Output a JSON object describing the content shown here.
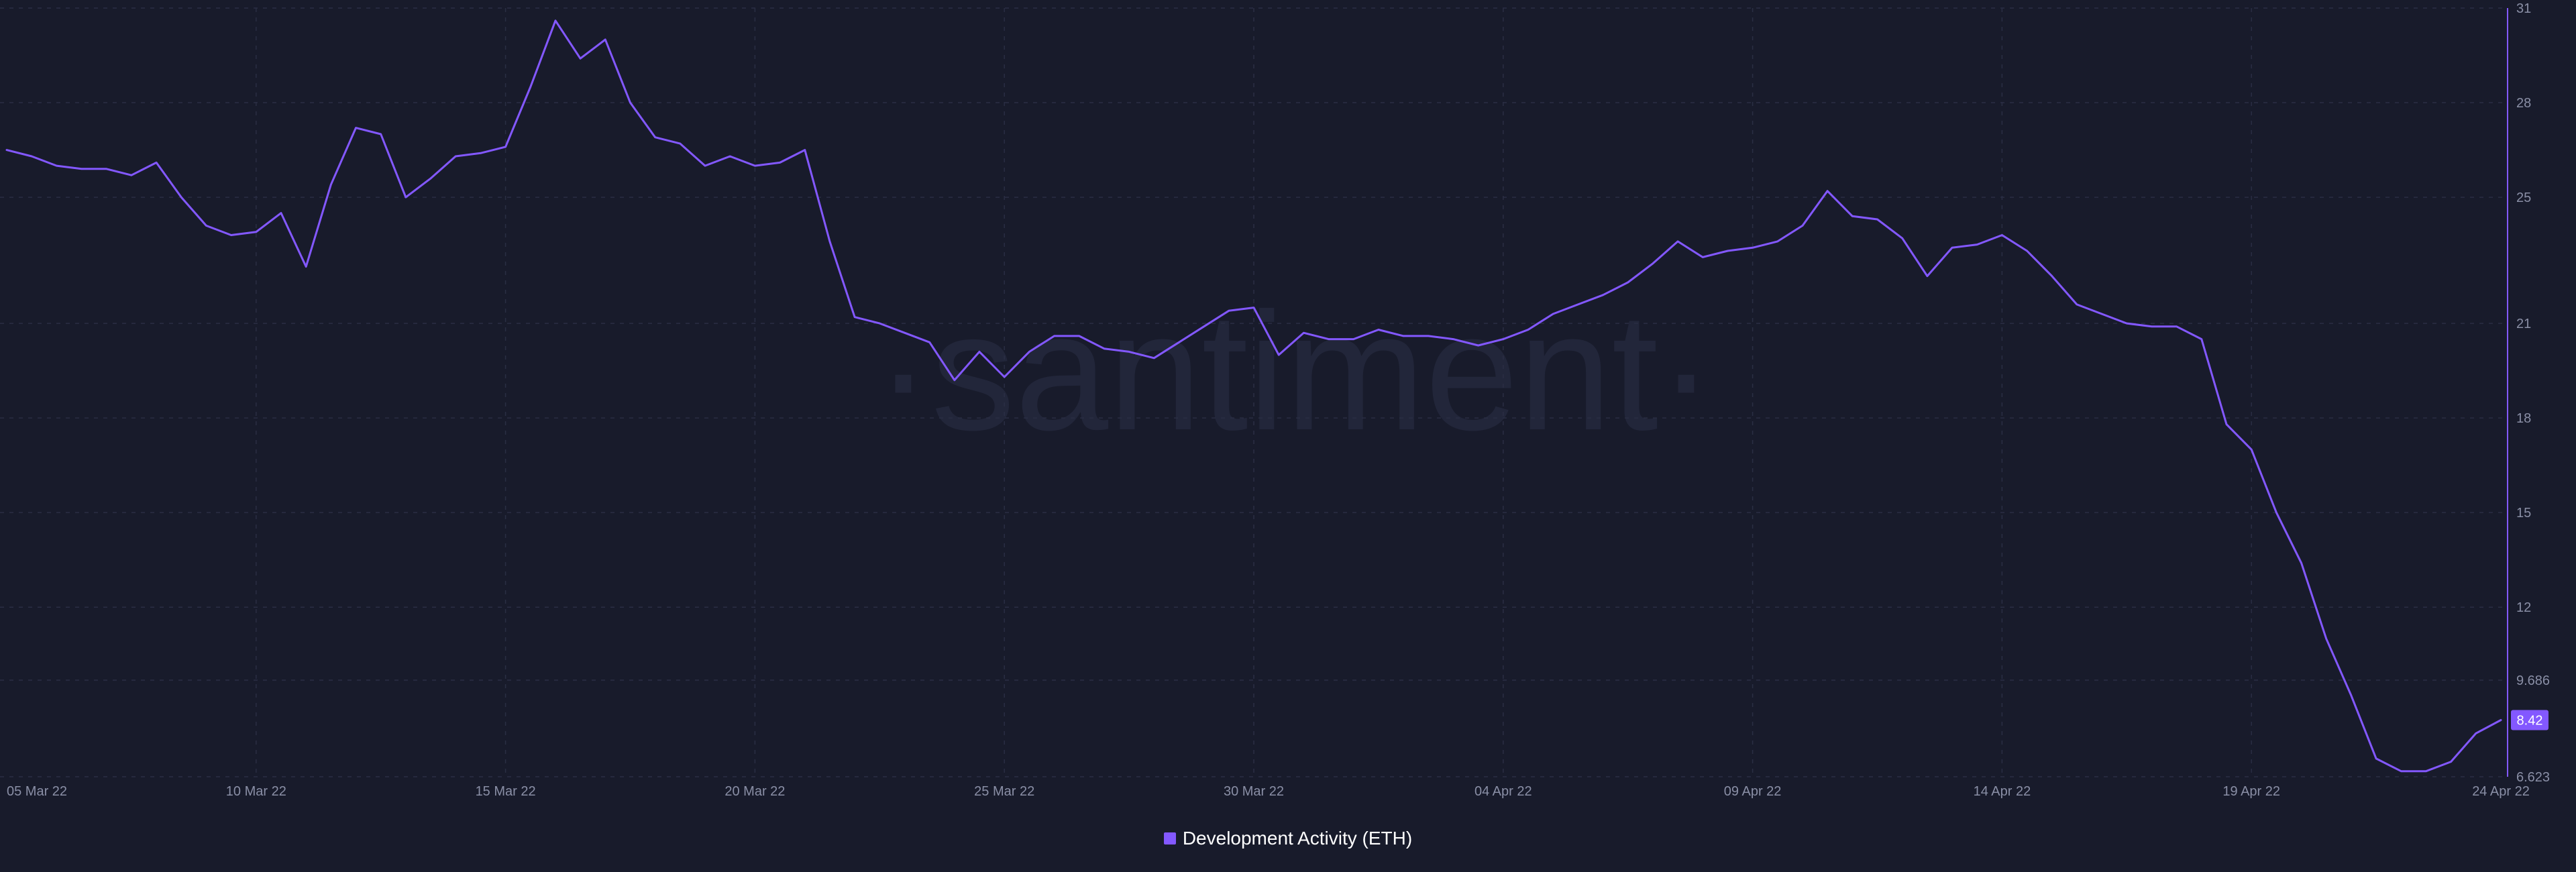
{
  "watermark_text": "·santiment·",
  "colors": {
    "background": "#181b2b",
    "series": "#8358ff",
    "grid": "#2a2e44",
    "axis_line": "#8358ff",
    "tick_text": "#8a8fa6",
    "current_value_badge": "#8358ff"
  },
  "legend": {
    "placement": "bottom-center",
    "label": "Development Activity (ETH)"
  },
  "current_value_label": "8.42",
  "chart_data": {
    "type": "line",
    "title": "",
    "xlabel": "",
    "ylabel": "",
    "grid": true,
    "x_ticks": [
      "05 Mar 22",
      "10 Mar 22",
      "15 Mar 22",
      "20 Mar 22",
      "25 Mar 22",
      "30 Mar 22",
      "04 Apr 22",
      "09 Apr 22",
      "14 Apr 22",
      "19 Apr 22",
      "24 Apr 22"
    ],
    "y_ticks": [
      "31",
      "28",
      "25",
      "21",
      "18",
      "15",
      "12",
      "9.686",
      "6.623"
    ],
    "ylim": [
      6.623,
      31
    ],
    "xlim": [
      "2022-03-05",
      "2022-04-24"
    ],
    "series": [
      {
        "name": "Development Activity (ETH)",
        "x": [
          "2022-03-05",
          "2022-03-05T12:00",
          "2022-03-06",
          "2022-03-06T12:00",
          "2022-03-07",
          "2022-03-07T12:00",
          "2022-03-08",
          "2022-03-08T12:00",
          "2022-03-09",
          "2022-03-09T12:00",
          "2022-03-10",
          "2022-03-10T12:00",
          "2022-03-11",
          "2022-03-11T12:00",
          "2022-03-12",
          "2022-03-12T12:00",
          "2022-03-13",
          "2022-03-13T12:00",
          "2022-03-14",
          "2022-03-14T12:00",
          "2022-03-15",
          "2022-03-15T12:00",
          "2022-03-16",
          "2022-03-16T12:00",
          "2022-03-17",
          "2022-03-17T12:00",
          "2022-03-18",
          "2022-03-18T12:00",
          "2022-03-19",
          "2022-03-19T12:00",
          "2022-03-20",
          "2022-03-20T12:00",
          "2022-03-21",
          "2022-03-21T12:00",
          "2022-03-22",
          "2022-03-22T12:00",
          "2022-03-23",
          "2022-03-23T12:00",
          "2022-03-24",
          "2022-03-24T12:00",
          "2022-03-25",
          "2022-03-25T12:00",
          "2022-03-26",
          "2022-03-26T12:00",
          "2022-03-27",
          "2022-03-27T12:00",
          "2022-03-28",
          "2022-03-28T12:00",
          "2022-03-29",
          "2022-03-29T12:00",
          "2022-03-30",
          "2022-03-30T12:00",
          "2022-03-31",
          "2022-03-31T12:00",
          "2022-04-01",
          "2022-04-01T12:00",
          "2022-04-02",
          "2022-04-02T12:00",
          "2022-04-03",
          "2022-04-03T12:00",
          "2022-04-04",
          "2022-04-04T12:00",
          "2022-04-05",
          "2022-04-05T12:00",
          "2022-04-06",
          "2022-04-06T12:00",
          "2022-04-07",
          "2022-04-07T12:00",
          "2022-04-08",
          "2022-04-08T12:00",
          "2022-04-09",
          "2022-04-09T12:00",
          "2022-04-10",
          "2022-04-10T12:00",
          "2022-04-11",
          "2022-04-11T12:00",
          "2022-04-12",
          "2022-04-12T12:00",
          "2022-04-13",
          "2022-04-13T12:00",
          "2022-04-14",
          "2022-04-14T12:00",
          "2022-04-15",
          "2022-04-15T12:00",
          "2022-04-16",
          "2022-04-16T12:00",
          "2022-04-17",
          "2022-04-17T12:00",
          "2022-04-18",
          "2022-04-18T12:00",
          "2022-04-19",
          "2022-04-19T12:00",
          "2022-04-20",
          "2022-04-20T12:00",
          "2022-04-21",
          "2022-04-21T12:00",
          "2022-04-22",
          "2022-04-22T12:00",
          "2022-04-23",
          "2022-04-23T12:00",
          "2022-04-24"
        ],
        "values": [
          26.5,
          26.3,
          26.0,
          25.9,
          25.9,
          25.7,
          26.1,
          25.0,
          24.1,
          23.8,
          23.9,
          24.5,
          22.8,
          25.4,
          27.2,
          27.0,
          25.0,
          25.6,
          26.3,
          26.4,
          26.6,
          28.5,
          30.6,
          29.4,
          30.0,
          28.0,
          26.9,
          26.7,
          26.0,
          26.3,
          26.0,
          26.1,
          26.5,
          23.6,
          21.2,
          21.0,
          20.7,
          20.4,
          19.2,
          20.1,
          19.3,
          20.1,
          20.6,
          20.6,
          20.2,
          20.1,
          19.9,
          20.4,
          20.9,
          21.4,
          21.5,
          20.0,
          20.7,
          20.5,
          20.5,
          20.8,
          20.6,
          20.6,
          20.5,
          20.3,
          20.5,
          20.8,
          21.3,
          21.6,
          21.9,
          22.3,
          22.9,
          23.6,
          23.1,
          23.3,
          23.4,
          23.6,
          24.1,
          25.2,
          24.4,
          24.3,
          23.7,
          22.5,
          23.4,
          23.5,
          23.8,
          23.3,
          22.5,
          21.6,
          21.3,
          21.0,
          20.9,
          20.9,
          20.5,
          17.8,
          17.0,
          15.0,
          13.4,
          11.0,
          9.2,
          7.2,
          6.8,
          6.8,
          7.1,
          8.0,
          8.42
        ]
      }
    ]
  }
}
